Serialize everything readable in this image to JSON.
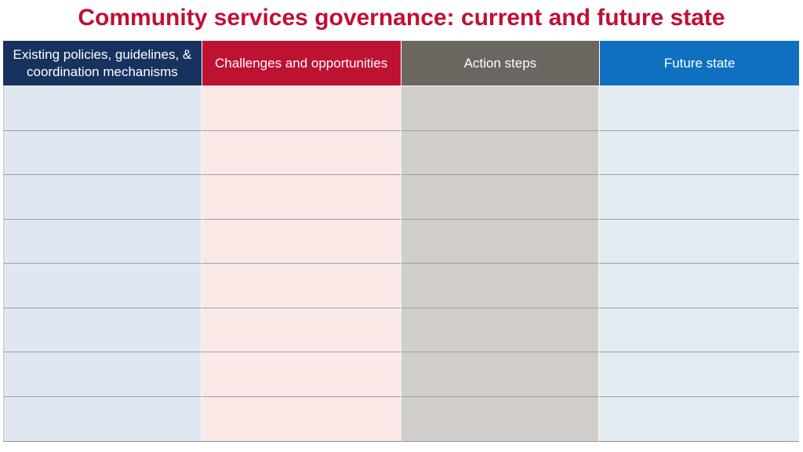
{
  "slide": {
    "title": "Community services governance: current and future state",
    "title_color": "#C00F35"
  },
  "table": {
    "columns": [
      {
        "label": "Existing policies, guidelines, & coordination mechanisms",
        "header_color": "#17325F",
        "body_color": "#DFE7F0"
      },
      {
        "label": "Challenges and opportunities",
        "header_color": "#BE1235",
        "body_color": "#FBE9E8"
      },
      {
        "label": "Action steps",
        "header_color": "#6C6660",
        "body_color": "#D1CEC9"
      },
      {
        "label": "Future state",
        "header_color": "#0E70BE",
        "body_color": "#E2EAF2"
      }
    ],
    "rows": [
      [
        "",
        "",
        "",
        ""
      ],
      [
        "",
        "",
        "",
        ""
      ],
      [
        "",
        "",
        "",
        ""
      ],
      [
        "",
        "",
        "",
        ""
      ],
      [
        "",
        "",
        "",
        ""
      ],
      [
        "",
        "",
        "",
        ""
      ],
      [
        "",
        "",
        "",
        ""
      ],
      [
        "",
        "",
        "",
        ""
      ]
    ]
  }
}
